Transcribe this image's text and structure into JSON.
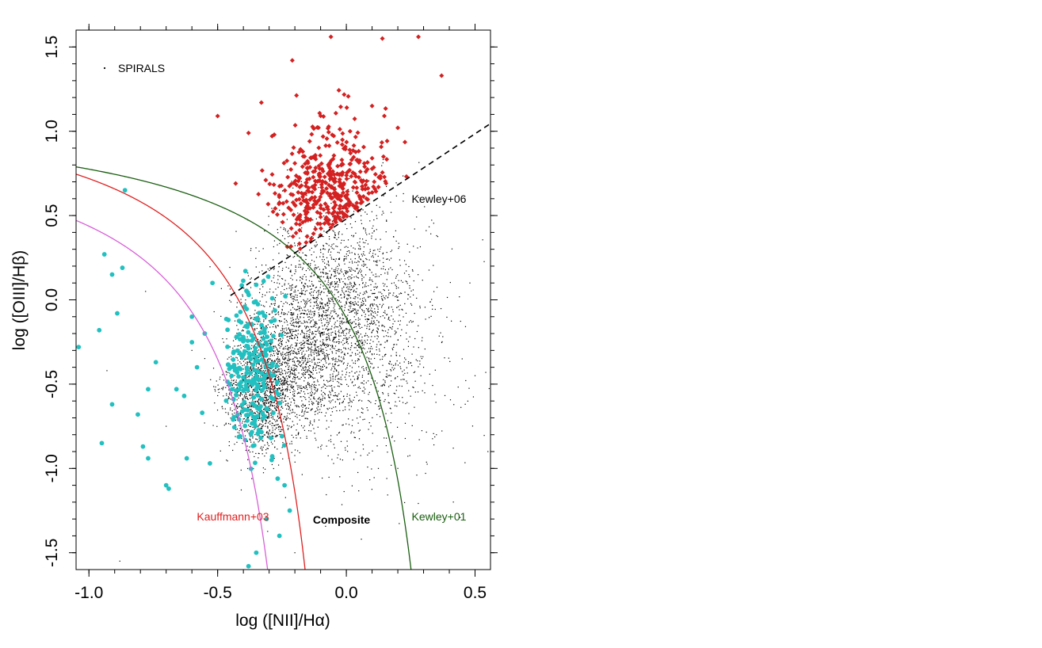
{
  "chart_data": {
    "type": "scatter",
    "title": "",
    "xlabel": "log ([NII]/Hα)",
    "ylabel": "log ([OIII]/Hβ)",
    "xlim": [
      -1.05,
      0.56
    ],
    "ylim": [
      -1.6,
      1.6
    ],
    "x_ticks": [
      "-1.0",
      "-0.5",
      "0.0",
      "0.5"
    ],
    "x_tick_values": [
      -1.0,
      -0.5,
      0.0,
      0.5
    ],
    "y_ticks": [
      "-1.5",
      "-1.0",
      "-0.5",
      "0.0",
      "0.5",
      "1.0",
      "1.5"
    ],
    "y_tick_values": [
      -1.5,
      -1.0,
      -0.5,
      0.0,
      0.5,
      1.0,
      1.5
    ],
    "grid": false,
    "legend": {
      "placement": "top-left",
      "entries": [
        "SPIRALS"
      ]
    },
    "annotations": {
      "kauffmann": "Kauffmann+03",
      "composite": "Composite",
      "kewley01": "Kewley+01",
      "kewley06": "Kewley+06"
    },
    "colors": {
      "spirals": "#000000",
      "red_points": "#d42020",
      "cyan_points": "#22c0c0",
      "kauffmann": "#e02020",
      "kewley01": "#1a5e10",
      "magenta_curve": "#d860d8",
      "kewley06": "#000000"
    },
    "series": [
      {
        "name": "SPIRALS",
        "marker": "small-dot",
        "clusters": [
          {
            "cx": -0.33,
            "cy": -0.55,
            "sx": 0.07,
            "sy": 0.17,
            "n": 1400
          },
          {
            "cx": -0.18,
            "cy": -0.3,
            "sx": 0.12,
            "sy": 0.25,
            "n": 1500
          },
          {
            "cx": 0.0,
            "cy": 0.0,
            "sx": 0.14,
            "sy": 0.28,
            "n": 1500
          },
          {
            "cx": 0.08,
            "cy": -0.4,
            "sx": 0.17,
            "sy": 0.35,
            "n": 500
          }
        ],
        "scattered": [
          [
            -0.93,
            -0.42
          ],
          [
            -0.78,
            0.05
          ],
          [
            -0.7,
            -0.75
          ],
          [
            -0.6,
            -0.3
          ],
          [
            0.3,
            -0.4
          ],
          [
            0.45,
            -0.35
          ],
          [
            0.5,
            -0.45
          ],
          [
            0.55,
            -0.9
          ],
          [
            0.48,
            0.1
          ],
          [
            0.35,
            -0.8
          ],
          [
            0.2,
            -1.0
          ],
          [
            -0.88,
            -1.55
          ],
          [
            -0.2,
            -1.5
          ],
          [
            0.05,
            -1.3
          ]
        ]
      },
      {
        "name": "",
        "marker": "red-diamond",
        "clusters": [
          {
            "cx": -0.06,
            "cy": 0.6,
            "sx": 0.11,
            "sy": 0.22,
            "n": 430,
            "cut": "above-kewley06"
          }
        ],
        "scattered": [
          [
            -0.5,
            1.09
          ],
          [
            -0.21,
            1.42
          ],
          [
            -0.06,
            1.56
          ],
          [
            0.14,
            1.55
          ],
          [
            0.28,
            1.56
          ],
          [
            0.37,
            1.33
          ],
          [
            -0.33,
            1.17
          ],
          [
            -0.43,
            0.69
          ],
          [
            -0.38,
            0.99
          ],
          [
            -0.28,
            0.98
          ],
          [
            0.2,
            1.02
          ],
          [
            0.1,
            1.15
          ]
        ]
      },
      {
        "name": "",
        "marker": "cyan-dot",
        "clusters": [
          {
            "cx": -0.36,
            "cy": -0.42,
            "sx": 0.05,
            "sy": 0.22,
            "n": 230
          }
        ],
        "scattered": [
          [
            -1.04,
            -0.28
          ],
          [
            -0.94,
            0.27
          ],
          [
            -0.91,
            0.15
          ],
          [
            -0.87,
            0.19
          ],
          [
            -0.89,
            -0.08
          ],
          [
            -0.96,
            -0.18
          ],
          [
            -0.91,
            -0.62
          ],
          [
            -0.95,
            -0.85
          ],
          [
            -0.81,
            -0.68
          ],
          [
            -0.79,
            -0.87
          ],
          [
            -0.77,
            -0.94
          ],
          [
            -0.74,
            -0.37
          ],
          [
            -0.77,
            -0.53
          ],
          [
            -0.7,
            -1.1
          ],
          [
            -0.69,
            -1.12
          ],
          [
            -0.66,
            -0.53
          ],
          [
            -0.63,
            -0.57
          ],
          [
            -0.62,
            -0.94
          ],
          [
            -0.56,
            -0.67
          ],
          [
            -0.53,
            -0.97
          ],
          [
            -0.86,
            0.65
          ],
          [
            -0.31,
            -1.3
          ],
          [
            -0.24,
            -1.1
          ],
          [
            -0.22,
            -1.25
          ],
          [
            -0.26,
            -1.4
          ],
          [
            -0.35,
            -1.5
          ],
          [
            -0.38,
            -1.58
          ],
          [
            -0.29,
            -0.95
          ],
          [
            -0.55,
            -0.2
          ],
          [
            -0.52,
            0.1
          ],
          [
            -0.6,
            -0.1
          ],
          [
            -0.58,
            -0.4
          ]
        ]
      }
    ],
    "lines": [
      {
        "name": "Kauffmann+03",
        "equation": "y = 0.61/(x-0.05) + 1.3"
      },
      {
        "name": "Kewley+01",
        "equation": "y = 0.61/(x-0.47) + 1.19"
      },
      {
        "name": "Kewley+06",
        "equation": "y = 1.01x + 0.48",
        "x_range": [
          -0.45,
          0.56
        ]
      },
      {
        "name": "",
        "equation": "y = 0.61/(x+0.08) + 1.1"
      }
    ]
  }
}
